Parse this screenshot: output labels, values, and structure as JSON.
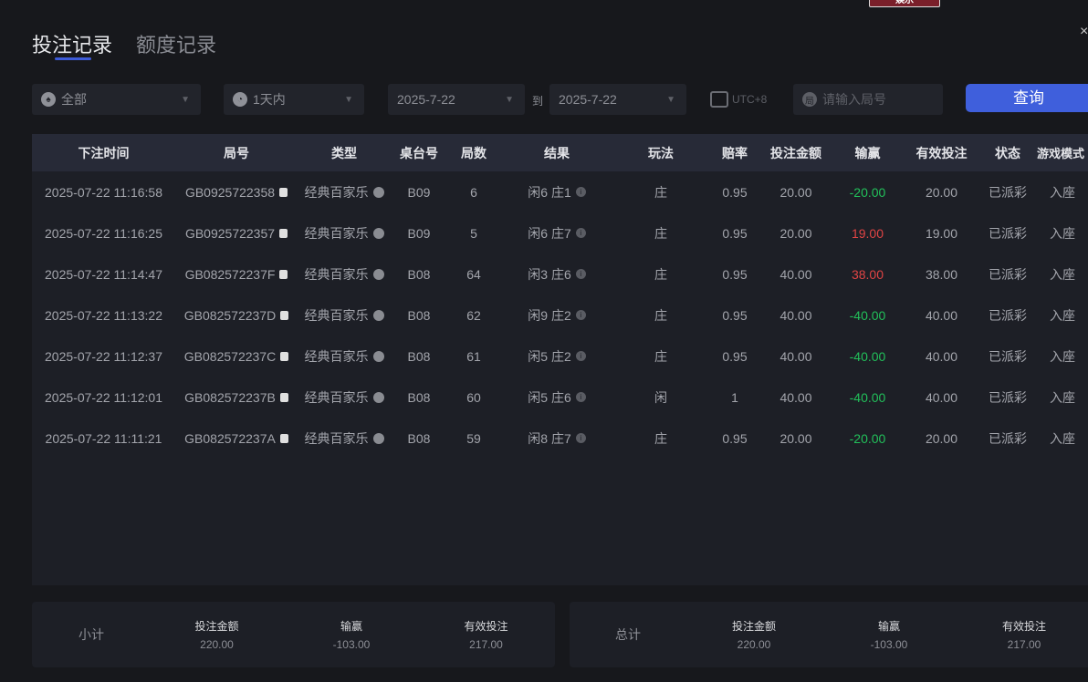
{
  "logo": {
    "text": "娱乐"
  },
  "tabs": [
    {
      "label": "投注记录",
      "active": true
    },
    {
      "label": "额度记录",
      "active": false
    }
  ],
  "filters": {
    "game_type": "全部",
    "time_range": "1天内",
    "date_from": "2025-7-22",
    "to_label": "到",
    "date_to": "2025-7-22",
    "timezone": "UTC+8",
    "round_placeholder": "请输入局号",
    "query_label": "查询"
  },
  "table": {
    "headers": [
      "下注时间",
      "局号",
      "类型",
      "桌台号",
      "局数",
      "结果",
      "玩法",
      "赔率",
      "投注金额",
      "输赢",
      "有效投注",
      "状态",
      "游戏模式"
    ],
    "rows": [
      [
        "2025-07-22 11:16:58",
        "GB0925722358",
        "经典百家乐",
        "B09",
        "6",
        "闲6 庄1",
        "庄",
        "0.95",
        "20.00",
        "-20.00",
        "20.00",
        "已派彩",
        "入座"
      ],
      [
        "2025-07-22 11:16:25",
        "GB0925722357",
        "经典百家乐",
        "B09",
        "5",
        "闲6 庄7",
        "庄",
        "0.95",
        "20.00",
        "19.00",
        "19.00",
        "已派彩",
        "入座"
      ],
      [
        "2025-07-22 11:14:47",
        "GB082572237F",
        "经典百家乐",
        "B08",
        "64",
        "闲3 庄6",
        "庄",
        "0.95",
        "40.00",
        "38.00",
        "38.00",
        "已派彩",
        "入座"
      ],
      [
        "2025-07-22 11:13:22",
        "GB082572237D",
        "经典百家乐",
        "B08",
        "62",
        "闲9 庄2",
        "庄",
        "0.95",
        "40.00",
        "-40.00",
        "40.00",
        "已派彩",
        "入座"
      ],
      [
        "2025-07-22 11:12:37",
        "GB082572237C",
        "经典百家乐",
        "B08",
        "61",
        "闲5 庄2",
        "庄",
        "0.95",
        "40.00",
        "-40.00",
        "40.00",
        "已派彩",
        "入座"
      ],
      [
        "2025-07-22 11:12:01",
        "GB082572237B",
        "经典百家乐",
        "B08",
        "60",
        "闲5 庄6",
        "闲",
        "1",
        "40.00",
        "-40.00",
        "40.00",
        "已派彩",
        "入座"
      ],
      [
        "2025-07-22 11:11:21",
        "GB082572237A",
        "经典百家乐",
        "B08",
        "59",
        "闲8 庄7",
        "庄",
        "0.95",
        "20.00",
        "-20.00",
        "20.00",
        "已派彩",
        "入座"
      ]
    ]
  },
  "subtotal": {
    "label": "小计",
    "bet_label": "投注金额",
    "bet": "220.00",
    "win_label": "输赢",
    "win": "-103.00",
    "valid_label": "有效投注",
    "valid": "217.00"
  },
  "total": {
    "label": "总计",
    "bet_label": "投注金额",
    "bet": "220.00",
    "win_label": "输赢",
    "win": "-103.00",
    "valid_label": "有效投注",
    "valid": "217.00"
  },
  "colors": {
    "accent": "#3f5fdc",
    "loss": "#22c05a",
    "win": "#e04444"
  }
}
